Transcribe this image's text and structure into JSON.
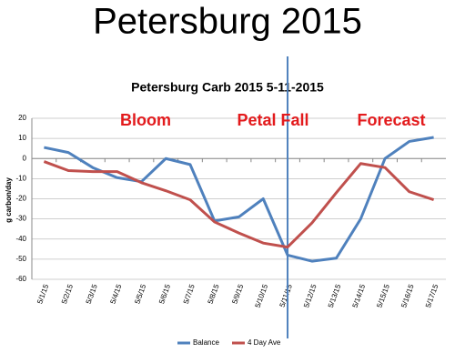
{
  "page_title": "Petersburg 2015",
  "chart_data": {
    "type": "line",
    "title": "Petersburg Carb 2015 5-11-2015",
    "y_label": "g carbon/day",
    "annotations": [
      "Bloom",
      "Petal Fall",
      "Forecast"
    ],
    "categories": [
      "5/1/15",
      "5/2/15",
      "5/3/15",
      "5/4/15",
      "5/5/15",
      "5/6/15",
      "5/7/15",
      "5/8/15",
      "5/9/15",
      "5/10/15",
      "5/11/15",
      "5/12/15",
      "5/13/15",
      "5/14/15",
      "5/15/15",
      "5/16/15",
      "5/17/15"
    ],
    "series": [
      {
        "name": "Balance",
        "color": "#4f81bd",
        "values": [
          5.5,
          3,
          -4.5,
          -9.5,
          -11.5,
          0,
          -3,
          -31,
          -29,
          -20,
          -48,
          -51,
          -49.5,
          -30,
          0,
          8.5,
          10.5
        ]
      },
      {
        "name": "4 Day Ave",
        "color": "#c0504d",
        "values": [
          -1.5,
          -6,
          -6.5,
          -6.5,
          -12,
          -16,
          -20.5,
          -31.5,
          -37,
          -42,
          -44,
          -32,
          -17,
          -2.5,
          -4.5,
          -16.5,
          -20.5
        ]
      }
    ],
    "ylim": [
      -60,
      20
    ],
    "yticks": [
      -60,
      -50,
      -40,
      -30,
      -20,
      -10,
      0,
      10,
      20
    ],
    "grid": true,
    "legend": "bottom"
  }
}
